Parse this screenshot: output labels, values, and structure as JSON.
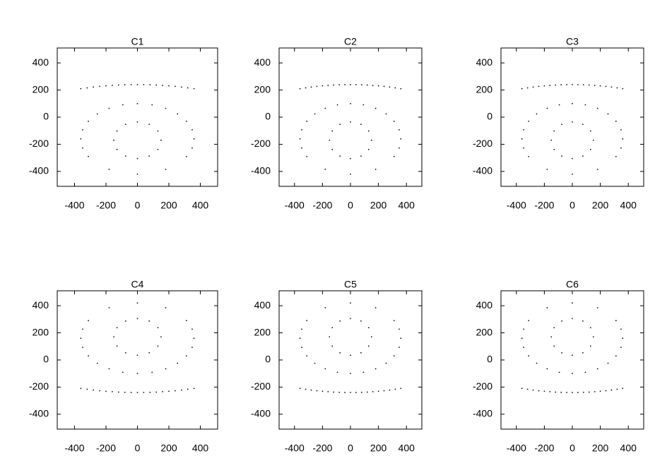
{
  "chart_data": [
    {
      "type": "scatter",
      "title": "C1",
      "color": "#000000",
      "xlim": [
        -510,
        510
      ],
      "ylim": [
        -510,
        510
      ],
      "xticks": [
        -400,
        -200,
        0,
        200,
        400
      ],
      "yticks": [
        -400,
        -200,
        0,
        200,
        400
      ],
      "x": [
        -360,
        -320,
        -280,
        -240,
        -200,
        -160,
        -120,
        -80,
        -40,
        0,
        40,
        80,
        120,
        160,
        200,
        240,
        280,
        320,
        360,
        360,
        348,
        312,
        255,
        180,
        93,
        0,
        -93,
        -180,
        -255,
        -312,
        -348,
        -360,
        -348,
        -312,
        -180,
        0,
        180,
        312,
        348,
        150,
        130,
        75,
        0,
        -75,
        -130,
        -150,
        -130,
        -75,
        0,
        75,
        130
      ],
      "y": [
        210,
        216,
        222,
        227,
        231,
        234,
        237,
        239,
        240,
        240,
        240,
        239,
        237,
        234,
        231,
        227,
        222,
        216,
        210,
        -160,
        -93,
        -30,
        24,
        65,
        91,
        100,
        91,
        65,
        24,
        -30,
        -93,
        -160,
        -227,
        -290,
        -385,
        -420,
        -385,
        -290,
        -227,
        -170,
        -102,
        -53,
        -35,
        -53,
        -102,
        -170,
        -238,
        -287,
        -305,
        -287,
        -238
      ]
    },
    {
      "type": "scatter",
      "title": "C2",
      "color": "#000000",
      "xlim": [
        -510,
        510
      ],
      "ylim": [
        -510,
        510
      ],
      "xticks": [
        -400,
        -200,
        0,
        200,
        400
      ],
      "yticks": [
        -400,
        -200,
        0,
        200,
        400
      ],
      "x": [
        -360,
        -320,
        -280,
        -240,
        -200,
        -160,
        -120,
        -80,
        -40,
        0,
        40,
        80,
        120,
        160,
        200,
        240,
        280,
        320,
        360,
        360,
        348,
        312,
        255,
        180,
        93,
        0,
        -93,
        -180,
        -255,
        -312,
        -348,
        -360,
        -348,
        -312,
        -180,
        0,
        180,
        312,
        348,
        150,
        130,
        75,
        0,
        -75,
        -130,
        -150,
        -130,
        -75,
        0,
        75,
        130
      ],
      "y": [
        210,
        216,
        222,
        227,
        231,
        234,
        237,
        239,
        240,
        240,
        240,
        239,
        237,
        234,
        231,
        227,
        222,
        216,
        210,
        -160,
        -93,
        -30,
        24,
        65,
        91,
        100,
        91,
        65,
        24,
        -30,
        -93,
        -160,
        -227,
        -290,
        -385,
        -420,
        -385,
        -290,
        -227,
        -170,
        -102,
        -53,
        -35,
        -53,
        -102,
        -170,
        -238,
        -287,
        -305,
        -287,
        -238
      ]
    },
    {
      "type": "scatter",
      "title": "C3",
      "color": "#000000",
      "xlim": [
        -510,
        510
      ],
      "ylim": [
        -510,
        510
      ],
      "xticks": [
        -400,
        -200,
        0,
        200,
        400
      ],
      "yticks": [
        -400,
        -200,
        0,
        200,
        400
      ],
      "x": [
        -360,
        -320,
        -280,
        -240,
        -200,
        -160,
        -120,
        -80,
        -40,
        0,
        40,
        80,
        120,
        160,
        200,
        240,
        280,
        320,
        360,
        360,
        348,
        312,
        255,
        180,
        93,
        0,
        -93,
        -180,
        -255,
        -312,
        -348,
        -360,
        -348,
        -312,
        -180,
        0,
        180,
        312,
        348,
        150,
        130,
        75,
        0,
        -75,
        -130,
        -150,
        -130,
        -75,
        0,
        75,
        130
      ],
      "y": [
        210,
        216,
        222,
        227,
        231,
        234,
        237,
        239,
        240,
        240,
        240,
        239,
        237,
        234,
        231,
        227,
        222,
        216,
        210,
        -160,
        -93,
        -30,
        24,
        65,
        91,
        100,
        91,
        65,
        24,
        -30,
        -93,
        -160,
        -227,
        -290,
        -385,
        -420,
        -385,
        -290,
        -227,
        -170,
        -102,
        -53,
        -35,
        -53,
        -102,
        -170,
        -238,
        -287,
        -305,
        -287,
        -238
      ]
    },
    {
      "type": "scatter",
      "title": "C4",
      "color": "#000000",
      "xlim": [
        -510,
        510
      ],
      "ylim": [
        -510,
        510
      ],
      "xticks": [
        -400,
        -200,
        0,
        200,
        400
      ],
      "yticks": [
        -400,
        -200,
        0,
        200,
        400
      ],
      "x": [
        -360,
        -320,
        -280,
        -240,
        -200,
        -160,
        -120,
        -80,
        -40,
        0,
        40,
        80,
        120,
        160,
        200,
        240,
        280,
        320,
        360,
        360,
        348,
        312,
        255,
        180,
        93,
        0,
        -93,
        -180,
        -255,
        -312,
        -348,
        -360,
        -348,
        -312,
        -180,
        0,
        180,
        312,
        348,
        150,
        130,
        75,
        0,
        -75,
        -130,
        -150,
        -130,
        -75,
        0,
        75,
        130
      ],
      "y": [
        -210,
        -216,
        -222,
        -227,
        -231,
        -234,
        -237,
        -239,
        -240,
        -240,
        -240,
        -239,
        -237,
        -234,
        -231,
        -227,
        -222,
        -216,
        -210,
        160,
        93,
        30,
        -24,
        -65,
        -91,
        -100,
        -91,
        -65,
        -24,
        30,
        93,
        160,
        227,
        290,
        385,
        420,
        385,
        290,
        227,
        170,
        102,
        53,
        35,
        53,
        102,
        170,
        238,
        287,
        305,
        287,
        238
      ]
    },
    {
      "type": "scatter",
      "title": "C5",
      "color": "#000000",
      "xlim": [
        -510,
        510
      ],
      "ylim": [
        -510,
        510
      ],
      "xticks": [
        -400,
        -200,
        0,
        200,
        400
      ],
      "yticks": [
        -400,
        -200,
        0,
        200,
        400
      ],
      "x": [
        -360,
        -320,
        -280,
        -240,
        -200,
        -160,
        -120,
        -80,
        -40,
        0,
        40,
        80,
        120,
        160,
        200,
        240,
        280,
        320,
        360,
        360,
        348,
        312,
        255,
        180,
        93,
        0,
        -93,
        -180,
        -255,
        -312,
        -348,
        -360,
        -348,
        -312,
        -180,
        0,
        180,
        312,
        348,
        150,
        130,
        75,
        0,
        -75,
        -130,
        -150,
        -130,
        -75,
        0,
        75,
        130
      ],
      "y": [
        -210,
        -216,
        -222,
        -227,
        -231,
        -234,
        -237,
        -239,
        -240,
        -240,
        -240,
        -239,
        -237,
        -234,
        -231,
        -227,
        -222,
        -216,
        -210,
        160,
        93,
        30,
        -24,
        -65,
        -91,
        -100,
        -91,
        -65,
        -24,
        30,
        93,
        160,
        227,
        290,
        385,
        420,
        385,
        290,
        227,
        170,
        102,
        53,
        35,
        53,
        102,
        170,
        238,
        287,
        305,
        287,
        238
      ]
    },
    {
      "type": "scatter",
      "title": "C6",
      "color": "#000000",
      "xlim": [
        -510,
        510
      ],
      "ylim": [
        -510,
        510
      ],
      "xticks": [
        -400,
        -200,
        0,
        200,
        400
      ],
      "yticks": [
        -400,
        -200,
        0,
        200,
        400
      ],
      "x": [
        -360,
        -320,
        -280,
        -240,
        -200,
        -160,
        -120,
        -80,
        -40,
        0,
        40,
        80,
        120,
        160,
        200,
        240,
        280,
        320,
        360,
        360,
        348,
        312,
        255,
        180,
        93,
        0,
        -93,
        -180,
        -255,
        -312,
        -348,
        -360,
        -348,
        -312,
        -180,
        0,
        180,
        312,
        348,
        150,
        130,
        75,
        0,
        -75,
        -130,
        -150,
        -130,
        -75,
        0,
        75,
        130
      ],
      "y": [
        -210,
        -216,
        -222,
        -227,
        -231,
        -234,
        -237,
        -239,
        -240,
        -240,
        -240,
        -239,
        -237,
        -234,
        -231,
        -227,
        -222,
        -216,
        -210,
        160,
        93,
        30,
        -24,
        -65,
        -91,
        -100,
        -91,
        -65,
        -24,
        30,
        93,
        160,
        227,
        290,
        385,
        420,
        385,
        290,
        227,
        170,
        102,
        53,
        35,
        53,
        102,
        170,
        238,
        287,
        305,
        287,
        238
      ]
    }
  ]
}
